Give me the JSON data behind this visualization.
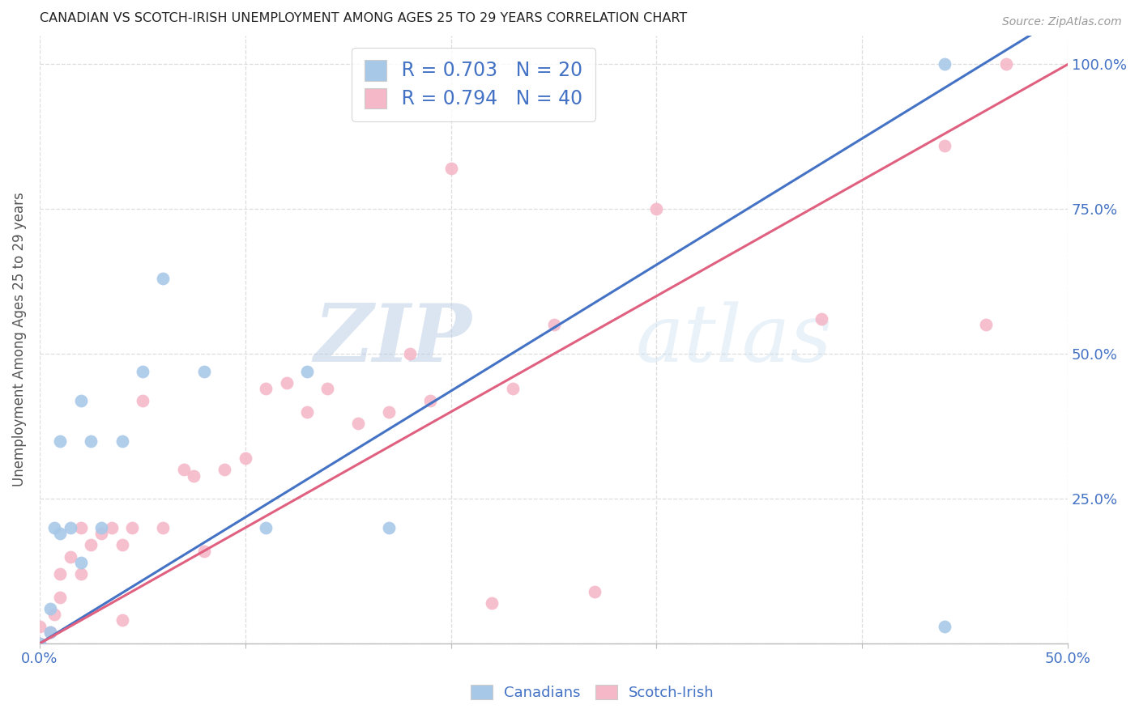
{
  "title": "CANADIAN VS SCOTCH-IRISH UNEMPLOYMENT AMONG AGES 25 TO 29 YEARS CORRELATION CHART",
  "source": "Source: ZipAtlas.com",
  "ylabel": "Unemployment Among Ages 25 to 29 years",
  "xlim": [
    0,
    0.5
  ],
  "ylim": [
    0,
    1.05
  ],
  "canadian_color": "#a8c8e8",
  "scotch_irish_color": "#f4b8c8",
  "canadian_line_color": "#4472c4",
  "scotch_irish_line_color": "#e06080",
  "legend_R_canadian": "R = 0.703",
  "legend_N_canadian": "N = 20",
  "legend_R_scotch": "R = 0.794",
  "legend_N_scotch": "N = 40",
  "watermark_zip": "ZIP",
  "watermark_atlas": "atlas",
  "canadian_x": [
    0.0,
    0.005,
    0.005,
    0.007,
    0.01,
    0.01,
    0.015,
    0.02,
    0.02,
    0.025,
    0.03,
    0.04,
    0.05,
    0.06,
    0.08,
    0.11,
    0.13,
    0.17,
    0.44,
    0.44
  ],
  "canadian_y": [
    0.0,
    0.02,
    0.06,
    0.2,
    0.19,
    0.35,
    0.2,
    0.14,
    0.42,
    0.35,
    0.2,
    0.35,
    0.47,
    0.63,
    0.47,
    0.2,
    0.47,
    0.2,
    1.0,
    0.03
  ],
  "scotch_irish_x": [
    0.0,
    0.0,
    0.005,
    0.007,
    0.01,
    0.01,
    0.015,
    0.02,
    0.02,
    0.025,
    0.03,
    0.035,
    0.04,
    0.04,
    0.045,
    0.05,
    0.06,
    0.07,
    0.075,
    0.08,
    0.09,
    0.1,
    0.11,
    0.12,
    0.13,
    0.14,
    0.155,
    0.17,
    0.18,
    0.19,
    0.2,
    0.22,
    0.23,
    0.25,
    0.27,
    0.3,
    0.38,
    0.44,
    0.46,
    0.47
  ],
  "scotch_irish_y": [
    0.0,
    0.03,
    0.02,
    0.05,
    0.08,
    0.12,
    0.15,
    0.12,
    0.2,
    0.17,
    0.19,
    0.2,
    0.04,
    0.17,
    0.2,
    0.42,
    0.2,
    0.3,
    0.29,
    0.16,
    0.3,
    0.32,
    0.44,
    0.45,
    0.4,
    0.44,
    0.38,
    0.4,
    0.5,
    0.42,
    0.82,
    0.07,
    0.44,
    0.55,
    0.09,
    0.75,
    0.56,
    0.86,
    0.55,
    1.0
  ],
  "background_color": "#ffffff",
  "grid_color": "#dddddd",
  "title_color": "#222222",
  "axis_color": "#4472c4",
  "legend_text_color": "#4472c4",
  "canadian_line_slope": 2.18,
  "canadian_line_intercept": 0.0,
  "scotch_irish_line_slope": 2.0,
  "scotch_irish_line_intercept": 0.0
}
